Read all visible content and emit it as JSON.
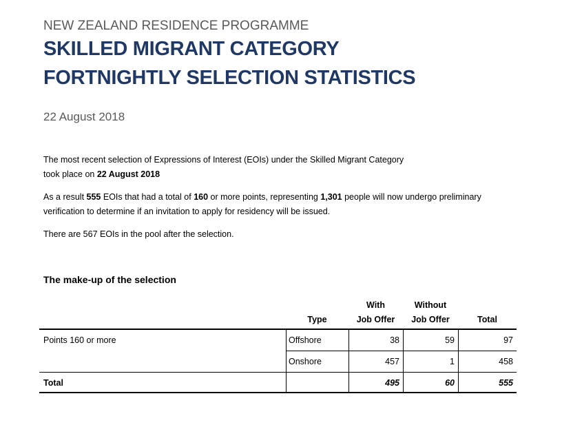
{
  "header": {
    "kicker": "NEW ZEALAND RESIDENCE PROGRAMME",
    "title_line1": "SKILLED MIGRANT CATEGORY",
    "title_line2": "FORTNIGHTLY SELECTION STATISTICS",
    "date": "22 August 2018"
  },
  "body": {
    "p1_a": "The most recent selection of Expressions of Interest (EOIs) under the Skilled Migrant Category",
    "p1_b": "took place on ",
    "p1_date": "22 August 2018",
    "p2_a": "As a result ",
    "p2_eois": "555",
    "p2_b": " EOIs that had a total of ",
    "p2_points": "160",
    "p2_c": " or more points, representing ",
    "p2_people": "1,301",
    "p2_d": " people will now undergo preliminary",
    "p2_e": "verification to determine if an invitation to apply for residency will be issued.",
    "p3": "There are 567 EOIs in the pool after the selection."
  },
  "section": {
    "title": "The make-up of the selection"
  },
  "table": {
    "headers": {
      "type": "Type",
      "with_1": "With",
      "with_2": "Job Offer",
      "without_1": "Without",
      "without_2": "Job Offer",
      "total": "Total"
    },
    "group_label": "Points 160 or more",
    "rows": [
      {
        "type": "Offshore",
        "with": "38",
        "without": "59",
        "total": "97"
      },
      {
        "type": "Onshore",
        "with": "457",
        "without": "1",
        "total": "458"
      }
    ],
    "total_row": {
      "label": "Total",
      "with": "495",
      "without": "60",
      "total": "555"
    }
  }
}
